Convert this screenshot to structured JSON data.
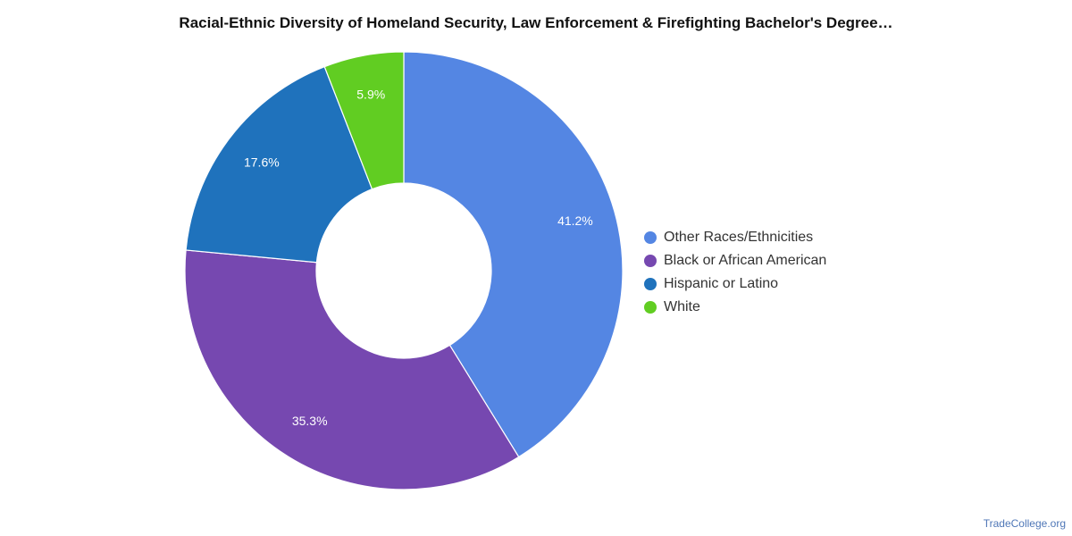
{
  "chart_data": {
    "type": "pie",
    "title": "Racial-Ethnic Diversity of Homeland Security, Law Enforcement & Firefighting Bachelor's Degree…",
    "donut": true,
    "legend_position": "right",
    "slices": [
      {
        "label": "Other Races/Ethnicities",
        "value": 41.2,
        "display": "41.2%",
        "color": "#5486e3"
      },
      {
        "label": "Black or African American",
        "value": 35.3,
        "display": "35.3%",
        "color": "#7648b0"
      },
      {
        "label": "Hispanic or Latino",
        "value": 17.6,
        "display": "17.6%",
        "color": "#1f72bc"
      },
      {
        "label": "White",
        "value": 5.9,
        "display": "5.9%",
        "color": "#61cd22"
      }
    ]
  },
  "source": "TradeCollege.org"
}
